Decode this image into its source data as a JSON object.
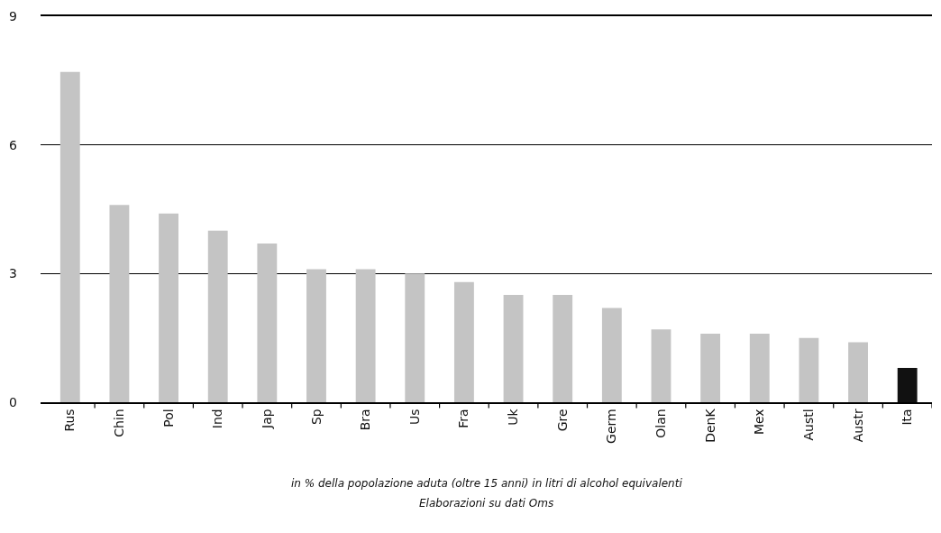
{
  "chart_data": {
    "type": "bar",
    "categories": [
      "Rus",
      "Chin",
      "Pol",
      "Ind",
      "Jap",
      "Sp",
      "Bra",
      "Us",
      "Fra",
      "Uk",
      "Gre",
      "Germ",
      "Olan",
      "DenK",
      "Mex",
      "Austl",
      "Austr",
      "Ita"
    ],
    "values": [
      7.7,
      4.6,
      4.4,
      4.0,
      3.7,
      3.1,
      3.1,
      3.0,
      2.8,
      2.5,
      2.5,
      2.2,
      1.7,
      1.6,
      1.6,
      1.5,
      1.4,
      0.8
    ],
    "colors": [
      "#c4c4c4",
      "#c4c4c4",
      "#c4c4c4",
      "#c4c4c4",
      "#c4c4c4",
      "#c4c4c4",
      "#c4c4c4",
      "#c4c4c4",
      "#c4c4c4",
      "#c4c4c4",
      "#c4c4c4",
      "#c4c4c4",
      "#c4c4c4",
      "#c4c4c4",
      "#c4c4c4",
      "#c4c4c4",
      "#c4c4c4",
      "#111111"
    ],
    "ylim": [
      0,
      9
    ],
    "yticks": [
      0,
      3,
      6,
      9
    ],
    "grid": "y",
    "annotations": [
      "in % della popolazione aduta (oltre 15 anni) in litri di alcohol equivalenti",
      "Elaborazioni su dati Oms"
    ]
  }
}
